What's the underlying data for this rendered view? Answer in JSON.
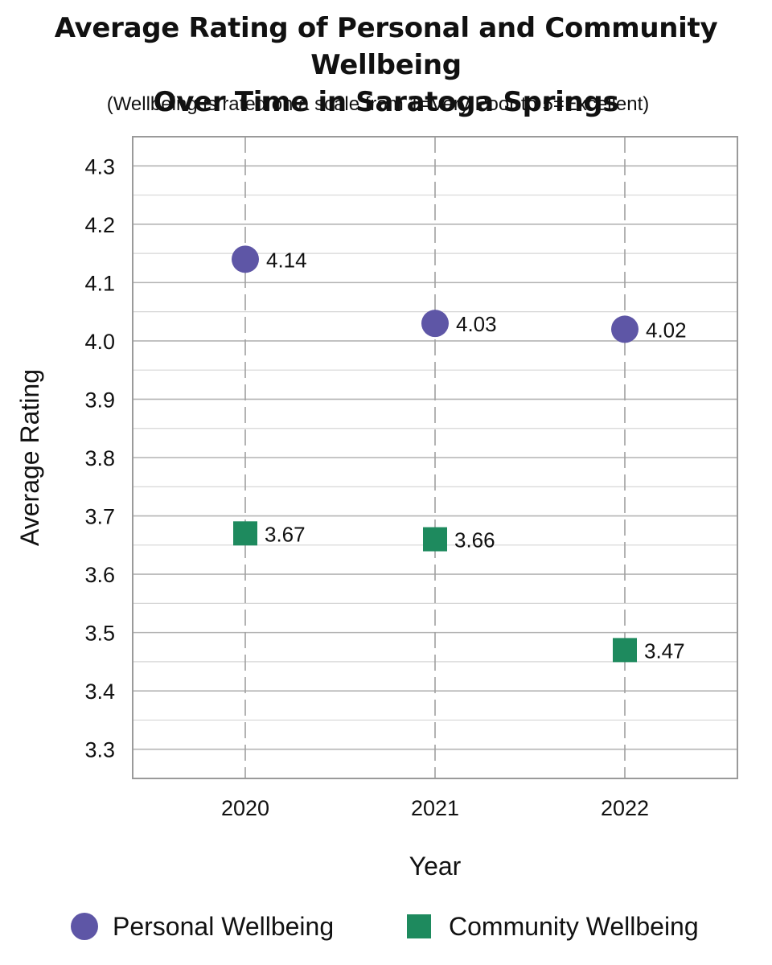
{
  "header": {
    "title_line1": "Average Rating of Personal and Community Wellbeing",
    "title_line2": "Over Time in Saratoga Springs",
    "subtitle": "(Wellbeing is rated on a scale from 1=Very Poor to 5=Excellent)"
  },
  "legend": {
    "personal": "Personal Wellbeing",
    "community": "Community Wellbeing"
  },
  "chart_data": {
    "type": "scatter",
    "title": "Average Rating of Personal and Community Wellbeing Over Time in Saratoga Springs",
    "subtitle": "(Wellbeing is rated on a scale from 1=Very Poor to 5=Excellent)",
    "xlabel": "Year",
    "ylabel": "Average Rating",
    "categories": [
      "2020",
      "2021",
      "2022"
    ],
    "ylim": [
      3.25,
      4.35
    ],
    "yticks": [
      "3.3",
      "3.4",
      "3.5",
      "3.6",
      "3.7",
      "3.8",
      "3.9",
      "4.0",
      "4.1",
      "4.2",
      "4.3"
    ],
    "grid": true,
    "legend_position": "bottom",
    "series": [
      {
        "name": "Personal Wellbeing",
        "marker": "circle",
        "color": "#5e56a6",
        "values": [
          4.14,
          4.03,
          4.02
        ],
        "labels": [
          "4.14",
          "4.03",
          "4.02"
        ]
      },
      {
        "name": "Community Wellbeing",
        "marker": "square",
        "color": "#1e8a5e",
        "values": [
          3.67,
          3.66,
          3.47
        ],
        "labels": [
          "3.67",
          "3.66",
          "3.47"
        ]
      }
    ]
  }
}
